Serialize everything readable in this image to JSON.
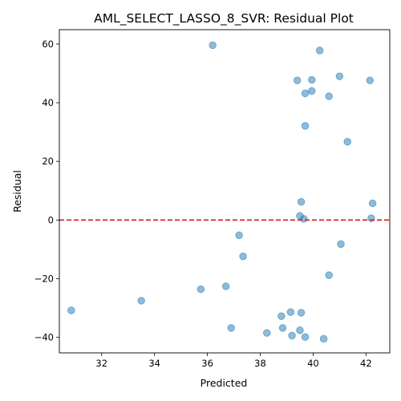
{
  "chart_data": {
    "type": "scatter",
    "title": "AML_SELECT_LASSO_8_SVR: Residual Plot",
    "xlabel": "Predicted",
    "ylabel": "Residual",
    "xlim": [
      30.4,
      42.9
    ],
    "ylim": [
      -45.3,
      64.9
    ],
    "xticks": [
      32,
      34,
      36,
      38,
      40,
      42
    ],
    "yticks": [
      -40,
      -20,
      0,
      20,
      40,
      60
    ],
    "grid": false,
    "point_color": "#1f77b4",
    "reference_line": {
      "y": 0,
      "color": "#d62728",
      "style": "dashed"
    },
    "points": [
      [
        36.2,
        59.6
      ],
      [
        40.25,
        57.8
      ],
      [
        41.0,
        49.0
      ],
      [
        39.4,
        47.6
      ],
      [
        39.95,
        47.8
      ],
      [
        42.15,
        47.6
      ],
      [
        39.95,
        44.0
      ],
      [
        39.7,
        43.2
      ],
      [
        40.6,
        42.2
      ],
      [
        39.7,
        32.1
      ],
      [
        41.3,
        26.7
      ],
      [
        39.55,
        6.2
      ],
      [
        42.25,
        5.7
      ],
      [
        39.5,
        1.4
      ],
      [
        39.65,
        0.4
      ],
      [
        42.2,
        0.6
      ],
      [
        37.2,
        -5.2
      ],
      [
        41.05,
        -8.2
      ],
      [
        37.35,
        -12.4
      ],
      [
        40.6,
        -18.8
      ],
      [
        36.7,
        -22.6
      ],
      [
        35.75,
        -23.6
      ],
      [
        33.5,
        -27.5
      ],
      [
        30.85,
        -30.8
      ],
      [
        39.15,
        -31.4
      ],
      [
        39.55,
        -31.6
      ],
      [
        38.8,
        -32.8
      ],
      [
        36.9,
        -36.8
      ],
      [
        38.85,
        -36.8
      ],
      [
        39.5,
        -37.6
      ],
      [
        38.25,
        -38.5
      ],
      [
        39.2,
        -39.4
      ],
      [
        39.7,
        -39.9
      ],
      [
        40.4,
        -40.5
      ]
    ]
  }
}
